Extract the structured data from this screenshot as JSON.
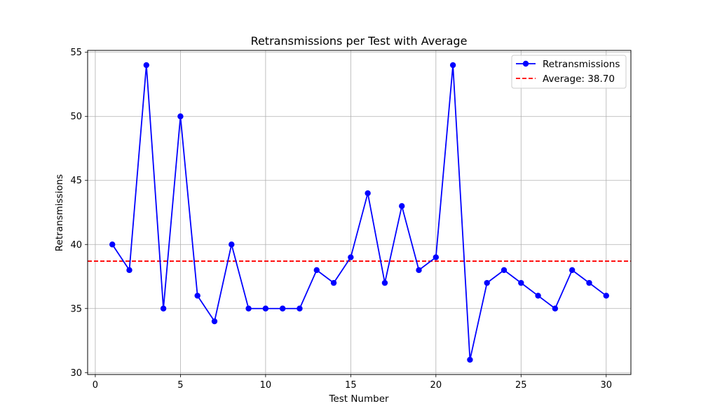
{
  "chart_data": {
    "type": "line",
    "title": "Retransmissions per Test with Average",
    "xlabel": "Test Number",
    "ylabel": "Retransmissions",
    "xlim": [
      -0.45,
      31.45
    ],
    "ylim": [
      29.85,
      55.15
    ],
    "xticks": [
      0,
      5,
      10,
      15,
      20,
      25,
      30
    ],
    "yticks": [
      30,
      35,
      40,
      45,
      50,
      55
    ],
    "grid": true,
    "legend_position": "upper right",
    "series": [
      {
        "name": "Retransmissions",
        "color": "#0000ff",
        "marker": "circle",
        "x": [
          1,
          2,
          3,
          4,
          5,
          6,
          7,
          8,
          9,
          10,
          11,
          12,
          13,
          14,
          15,
          16,
          17,
          18,
          19,
          20,
          21,
          22,
          23,
          24,
          25,
          26,
          27,
          28,
          29,
          30
        ],
        "y": [
          40,
          38,
          54,
          35,
          50,
          36,
          34,
          40,
          35,
          35,
          35,
          35,
          38,
          37,
          39,
          44,
          37,
          43,
          38,
          39,
          54,
          31,
          37,
          38,
          37,
          36,
          35,
          38,
          37,
          36
        ]
      }
    ],
    "reference_lines": [
      {
        "name": "Average: 38.70",
        "value": 38.7,
        "orientation": "horizontal",
        "color": "#ff0000",
        "style": "dashed"
      }
    ]
  }
}
